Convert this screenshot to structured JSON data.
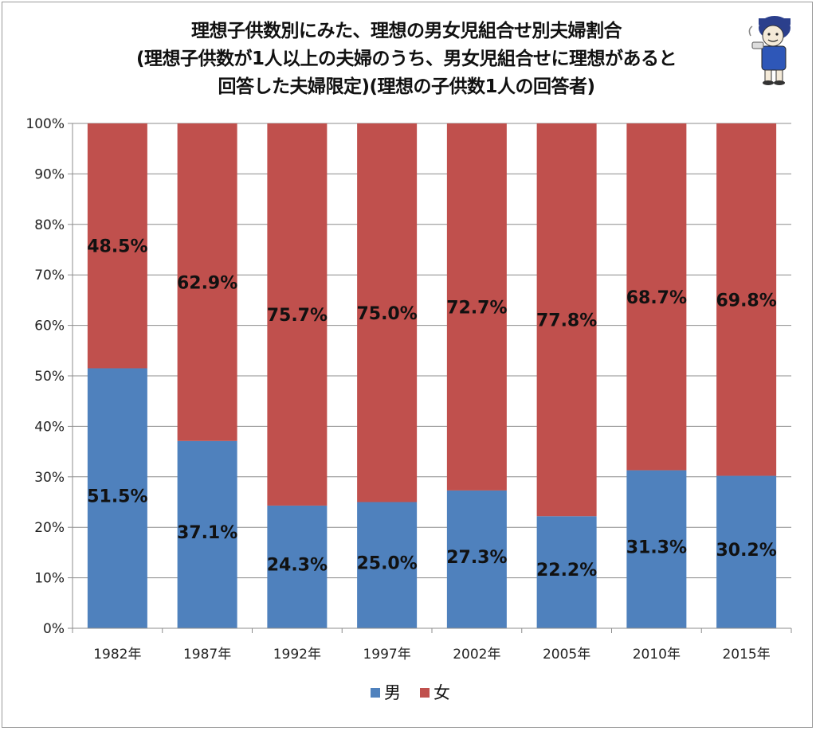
{
  "chart_data": {
    "type": "bar",
    "stacked": true,
    "percent": true,
    "title_lines": [
      "理想子供数別にみた、理想の男女児組合せ別夫婦割合",
      "(理想子供数が1人以上の夫婦のうち、男女児組合せに理想があると",
      "回答した夫婦限定)(理想の子供数1人の回答者)"
    ],
    "categories": [
      "1982年",
      "1987年",
      "1992年",
      "1997年",
      "2002年",
      "2005年",
      "2010年",
      "2015年"
    ],
    "series": [
      {
        "name": "男",
        "color": "#4f81bd",
        "values": [
          51.5,
          37.1,
          24.3,
          25.0,
          27.3,
          22.2,
          31.3,
          30.2
        ],
        "labels": [
          "51.5%",
          "37.1%",
          "24.3%",
          "25.0%",
          "27.3%",
          "22.2%",
          "31.3%",
          "30.2%"
        ]
      },
      {
        "name": "女",
        "color": "#c0504d",
        "values": [
          48.5,
          62.9,
          75.7,
          75.0,
          72.7,
          77.8,
          68.7,
          69.8
        ],
        "labels": [
          "48.5%",
          "62.9%",
          "75.7%",
          "75.0%",
          "72.7%",
          "77.8%",
          "68.7%",
          "69.8%"
        ]
      }
    ],
    "ylim": [
      0,
      100
    ],
    "yticks": [
      0,
      10,
      20,
      30,
      40,
      50,
      60,
      70,
      80,
      90,
      100
    ],
    "ytick_labels": [
      "0%",
      "10%",
      "20%",
      "30%",
      "40%",
      "50%",
      "60%",
      "70%",
      "80%",
      "90%",
      "100%"
    ],
    "xlabel": "",
    "ylabel": "",
    "grid": true,
    "legend_position": "bottom"
  }
}
